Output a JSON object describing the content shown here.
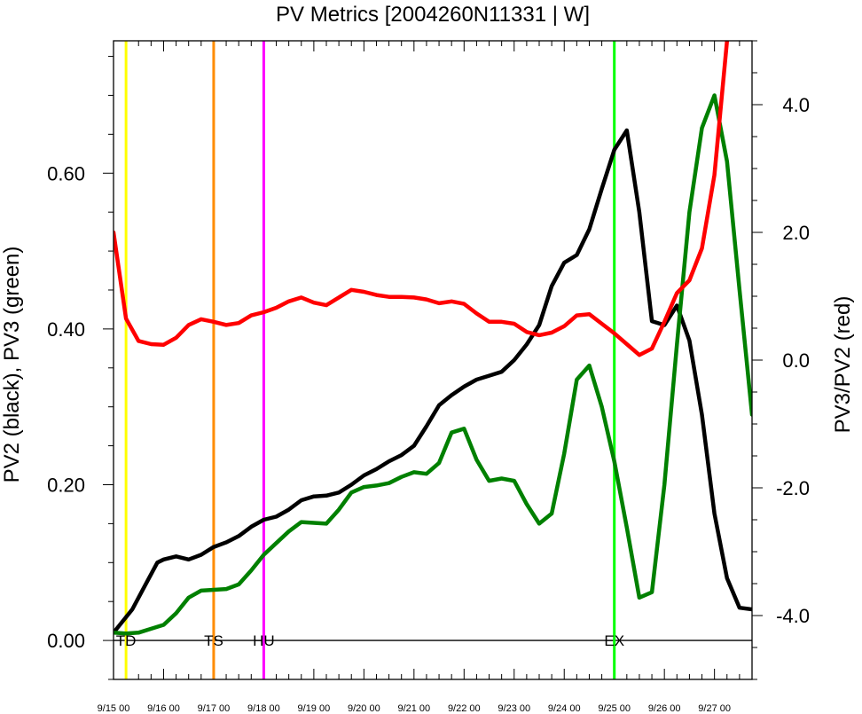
{
  "chart_data": {
    "type": "line",
    "title": "PV Metrics [2004260N11331 | W]",
    "ylabel_left": "PV2 (black), PV3 (green)",
    "ylabel_right": "PV3/PV2 (red)",
    "xlim": [
      0,
      12.75
    ],
    "ylim_left": [
      -0.05,
      0.77
    ],
    "ylim_right": [
      -5.0,
      5.0
    ],
    "x_ticks": [
      {
        "value": 0,
        "label": "9/15 00"
      },
      {
        "value": 1,
        "label": "9/16 00"
      },
      {
        "value": 2,
        "label": "9/17 00"
      },
      {
        "value": 3,
        "label": "9/18 00"
      },
      {
        "value": 4,
        "label": "9/19 00"
      },
      {
        "value": 5,
        "label": "9/20 00"
      },
      {
        "value": 6,
        "label": "9/21 00"
      },
      {
        "value": 7,
        "label": "9/22 00"
      },
      {
        "value": 8,
        "label": "9/23 00"
      },
      {
        "value": 9,
        "label": "9/24 00"
      },
      {
        "value": 10,
        "label": "9/25 00"
      },
      {
        "value": 11,
        "label": "9/26 00"
      },
      {
        "value": 12,
        "label": "9/27 00"
      }
    ],
    "y_ticks_left": [
      {
        "value": 0.0,
        "label": "0.00"
      },
      {
        "value": 0.2,
        "label": "0.20"
      },
      {
        "value": 0.4,
        "label": "0.40"
      },
      {
        "value": 0.6,
        "label": "0.60"
      }
    ],
    "y_ticks_right": [
      {
        "value": 4.0,
        "label": "4.0"
      },
      {
        "value": 2.0,
        "label": "2.0"
      },
      {
        "value": 0.0,
        "label": "0.0"
      },
      {
        "value": -2.0,
        "label": "-2.0"
      },
      {
        "value": -4.0,
        "label": "-4.0"
      }
    ],
    "zero_line": 0.0,
    "events": [
      {
        "x": 0.25,
        "label": "TD",
        "color": "#ffff00"
      },
      {
        "x": 2.0,
        "label": "TS",
        "color": "#ff8c00"
      },
      {
        "x": 3.0,
        "label": "HU",
        "color": "#ff00ff"
      },
      {
        "x": 10.0,
        "label": "EX",
        "color": "#00ff00"
      }
    ],
    "series": [
      {
        "color": "#000000",
        "axis": "left",
        "x": [
          0,
          0.125,
          0.375,
          0.625,
          0.875,
          1.0,
          1.25,
          1.5,
          1.75,
          2.0,
          2.25,
          2.5,
          2.75,
          3.0,
          3.25,
          3.5,
          3.75,
          4.0,
          4.25,
          4.5,
          4.75,
          5.0,
          5.25,
          5.5,
          5.75,
          6.0,
          6.25,
          6.5,
          6.75,
          7.0,
          7.25,
          7.5,
          7.75,
          8.0,
          8.25,
          8.5,
          8.75,
          9.0,
          9.25,
          9.5,
          9.75,
          10.0,
          10.25,
          10.5,
          10.75,
          11.0,
          11.25,
          11.5,
          11.75,
          12.0,
          12.25,
          12.5,
          12.75
        ],
        "y": [
          0.01,
          0.02,
          0.04,
          0.07,
          0.1,
          0.104,
          0.108,
          0.104,
          0.11,
          0.12,
          0.126,
          0.134,
          0.146,
          0.155,
          0.159,
          0.168,
          0.18,
          0.185,
          0.186,
          0.19,
          0.2,
          0.212,
          0.22,
          0.23,
          0.238,
          0.25,
          0.275,
          0.302,
          0.315,
          0.326,
          0.335,
          0.34,
          0.345,
          0.36,
          0.38,
          0.405,
          0.455,
          0.485,
          0.495,
          0.528,
          0.58,
          0.63,
          0.655,
          0.55,
          0.41,
          0.405,
          0.43,
          0.385,
          0.29,
          0.163,
          0.08,
          0.042,
          0.04
        ]
      },
      {
        "color": "#008000",
        "axis": "left",
        "x": [
          0,
          0.25,
          0.5,
          0.75,
          1.0,
          1.25,
          1.5,
          1.75,
          2.0,
          2.25,
          2.5,
          2.75,
          3.0,
          3.25,
          3.5,
          3.75,
          4.0,
          4.25,
          4.5,
          4.75,
          5.0,
          5.25,
          5.5,
          5.75,
          6.0,
          6.25,
          6.5,
          6.75,
          7.0,
          7.25,
          7.5,
          7.75,
          8.0,
          8.25,
          8.5,
          8.75,
          9.0,
          9.25,
          9.5,
          9.75,
          10.0,
          10.25,
          10.5,
          10.75,
          11.0,
          11.25,
          11.5,
          11.75,
          12.0,
          12.25,
          12.5,
          12.75
        ],
        "y": [
          0.01,
          0.009,
          0.01,
          0.015,
          0.02,
          0.035,
          0.055,
          0.064,
          0.065,
          0.066,
          0.072,
          0.09,
          0.11,
          0.125,
          0.14,
          0.152,
          0.151,
          0.15,
          0.168,
          0.19,
          0.197,
          0.199,
          0.202,
          0.21,
          0.216,
          0.214,
          0.228,
          0.267,
          0.272,
          0.232,
          0.205,
          0.208,
          0.205,
          0.175,
          0.15,
          0.163,
          0.24,
          0.335,
          0.353,
          0.3,
          0.23,
          0.145,
          0.055,
          0.062,
          0.2,
          0.38,
          0.55,
          0.658,
          0.7,
          0.615,
          0.45,
          0.29
        ]
      },
      {
        "color": "#ff0000",
        "axis": "right",
        "x": [
          0,
          0.25,
          0.5,
          0.75,
          1.0,
          1.25,
          1.5,
          1.75,
          2.0,
          2.25,
          2.5,
          2.75,
          3.0,
          3.25,
          3.5,
          3.75,
          4.0,
          4.25,
          4.5,
          4.75,
          5.0,
          5.25,
          5.5,
          5.75,
          6.0,
          6.25,
          6.5,
          6.75,
          7.0,
          7.25,
          7.5,
          7.75,
          8.0,
          8.25,
          8.5,
          8.75,
          9.0,
          9.25,
          9.5,
          9.75,
          10.0,
          10.25,
          10.5,
          10.75,
          11.0,
          11.25,
          11.5,
          11.75,
          12.0,
          12.25
        ],
        "y": [
          2.0,
          0.65,
          0.3,
          0.25,
          0.24,
          0.35,
          0.55,
          0.64,
          0.6,
          0.55,
          0.58,
          0.7,
          0.75,
          0.82,
          0.92,
          0.98,
          0.9,
          0.86,
          0.98,
          1.1,
          1.07,
          1.02,
          0.99,
          0.99,
          0.98,
          0.95,
          0.89,
          0.92,
          0.88,
          0.73,
          0.6,
          0.6,
          0.57,
          0.44,
          0.39,
          0.43,
          0.53,
          0.7,
          0.72,
          0.57,
          0.42,
          0.25,
          0.08,
          0.18,
          0.6,
          1.05,
          1.25,
          1.75,
          2.9,
          5.0
        ]
      }
    ]
  }
}
